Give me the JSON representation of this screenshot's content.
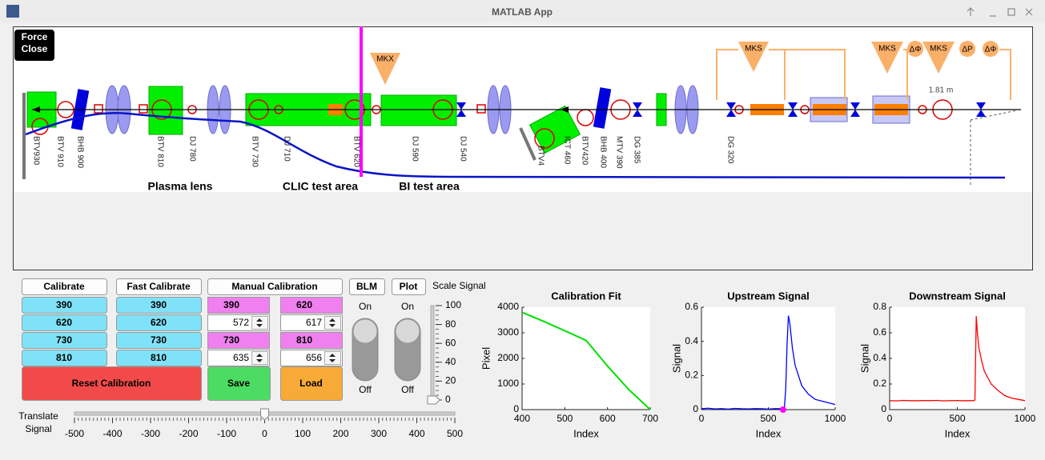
{
  "window": {
    "title": "MATLAB App"
  },
  "force_close": [
    "Force",
    "Close"
  ],
  "beamline": {
    "labels": [
      "BTV930",
      "BTV 910",
      "BHB 900",
      "BTV 810",
      "DJ 780",
      "BTV 730",
      "DJ 710",
      "BTV 620",
      "DJ 590",
      "DJ 540",
      "BTV4",
      "ICT 460",
      "BTV420",
      "BHB 400",
      "MTV 390",
      "DG 385",
      "DG 320"
    ],
    "areas": [
      "Plasma lens",
      "CLIC test area",
      "BI test area"
    ],
    "kicker": "MKX",
    "klystrons": [
      "MKS",
      "MKS",
      "MKS"
    ],
    "phase": [
      "ΔΦ",
      "ΔP",
      "ΔΦ"
    ],
    "distance": "1.81 m"
  },
  "controls": {
    "calibrate": {
      "label": "Calibrate",
      "values": [
        390,
        620,
        730,
        810
      ]
    },
    "fast_calibrate": {
      "label": "Fast Calibrate",
      "values": [
        390,
        620,
        730,
        810
      ]
    },
    "manual": {
      "label": "Manual Calibration",
      "targets": [
        390,
        620,
        730,
        810
      ],
      "pixels": [
        572,
        617,
        635,
        656
      ]
    },
    "reset": "Reset Calibration",
    "save": "Save",
    "load": "Load",
    "blm": {
      "label": "BLM",
      "on": "On",
      "off": "Off"
    },
    "plot": {
      "label": "Plot",
      "on": "On",
      "off": "Off"
    },
    "scale": {
      "label": "Scale Signal",
      "ticks": [
        0,
        20,
        40,
        60,
        80,
        100
      ],
      "value": 0
    },
    "translate": {
      "label": [
        "Translate",
        "Signal"
      ],
      "ticks": [
        -500,
        -400,
        -300,
        -200,
        -100,
        0,
        100,
        200,
        300,
        400,
        500
      ],
      "value": 0
    }
  },
  "chart_data": [
    {
      "type": "line",
      "title": "Calibration Fit",
      "xlabel": "Index",
      "ylabel": "Pixel",
      "xlim": [
        400,
        700
      ],
      "xticks": [
        400,
        500,
        600,
        700
      ],
      "ylim": [
        0,
        4000
      ],
      "yticks": [
        0,
        1000,
        2000,
        3000,
        4000
      ],
      "series": [
        {
          "color": "#00e000",
          "x": [
            400,
            450,
            500,
            550,
            600,
            650,
            700
          ],
          "values": [
            3800,
            3450,
            3080,
            2700,
            1700,
            780,
            0
          ]
        }
      ]
    },
    {
      "type": "line",
      "title": "Upstream Signal",
      "xlabel": "Index",
      "ylabel": "Signal",
      "xlim": [
        0,
        1000
      ],
      "xticks": [
        0,
        500,
        1000
      ],
      "ylim": [
        0,
        0.6
      ],
      "yticks": [
        0,
        0.2,
        0.4,
        0.6
      ],
      "series": [
        {
          "color": "#0000ff",
          "x": [
            0,
            50,
            100,
            150,
            200,
            250,
            300,
            350,
            400,
            450,
            500,
            550,
            600,
            620,
            630,
            640,
            650,
            660,
            680,
            700,
            750,
            800,
            850,
            900,
            950,
            1000
          ],
          "values": [
            0.005,
            0.008,
            0.004,
            0.006,
            0.003,
            0.007,
            0.005,
            0.004,
            0.006,
            0.005,
            0.003,
            0.006,
            0.005,
            0.01,
            0.12,
            0.38,
            0.55,
            0.51,
            0.36,
            0.26,
            0.14,
            0.09,
            0.06,
            0.05,
            0.04,
            0.03
          ]
        },
        {
          "color": "#ff00ff",
          "style": "marker",
          "x": [
            610
          ],
          "values": [
            0
          ]
        }
      ]
    },
    {
      "type": "line",
      "title": "Downstream Signal",
      "xlabel": "Index",
      "ylabel": "Signal",
      "xlim": [
        0,
        1000
      ],
      "xticks": [
        0,
        500,
        1000
      ],
      "ylim": [
        0,
        0.8
      ],
      "yticks": [
        0,
        0.2,
        0.4,
        0.6,
        0.8
      ],
      "series": [
        {
          "color": "#ff0000",
          "x": [
            0,
            50,
            100,
            150,
            200,
            250,
            300,
            350,
            400,
            450,
            500,
            550,
            600,
            620,
            630,
            640,
            650,
            660,
            680,
            700,
            750,
            800,
            850,
            900,
            950,
            1000
          ],
          "values": [
            0.07,
            0.068,
            0.072,
            0.07,
            0.069,
            0.071,
            0.07,
            0.072,
            0.068,
            0.07,
            0.071,
            0.069,
            0.07,
            0.07,
            0.075,
            0.73,
            0.58,
            0.48,
            0.38,
            0.3,
            0.2,
            0.15,
            0.11,
            0.09,
            0.08,
            0.07
          ]
        }
      ]
    }
  ]
}
